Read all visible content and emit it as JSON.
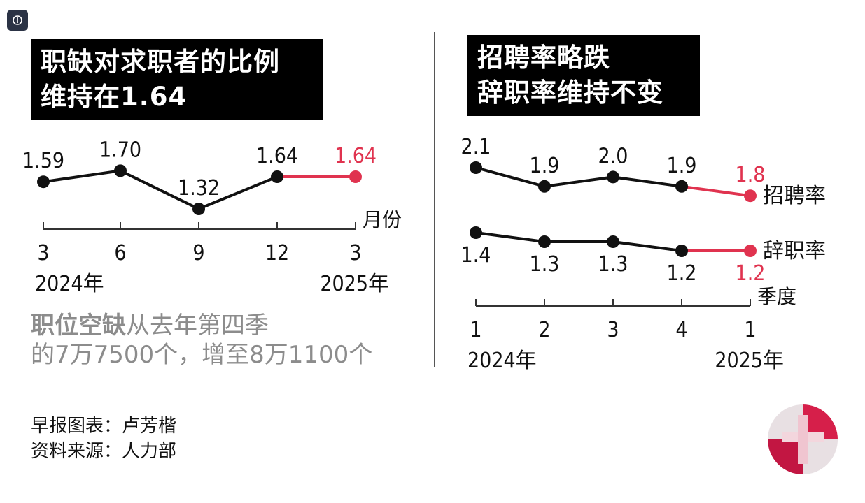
{
  "left_panel": {
    "title_lines": [
      "职缺对求职者的比例",
      "维持在1.64"
    ],
    "note": {
      "bold": "职位空缺",
      "rest1": "从去年第四季",
      "line2": "的7万7500个，增至8万1100个"
    }
  },
  "right_panel": {
    "title_lines": [
      "招聘率略跌",
      "辞职率维持不变"
    ]
  },
  "credits": [
    "早报图表：卢芳楷",
    "资料来源：人力部"
  ],
  "colors": {
    "highlight": "#e0334f",
    "line": "#111111",
    "note_text": "#8c8c8c"
  },
  "icons": {
    "corner_badge": "app-badge-icon",
    "brand_logo": "brand-logo-icon"
  },
  "chart_data": [
    {
      "type": "line",
      "categories": [
        "3",
        "6",
        "9",
        "12",
        "3"
      ],
      "year_labels": [
        "2024年",
        "2025年"
      ],
      "x_unit": "月份",
      "values": [
        1.59,
        1.7,
        1.32,
        1.64,
        1.64
      ],
      "value_labels": [
        "1.59",
        "1.70",
        "1.32",
        "1.64",
        "1.64"
      ],
      "highlight_last": true,
      "ylim": [
        1.2,
        1.8
      ]
    },
    {
      "type": "line",
      "categories": [
        "1",
        "2",
        "3",
        "4",
        "1"
      ],
      "year_labels": [
        "2024年",
        "2025年"
      ],
      "x_unit": "季度",
      "series": [
        {
          "name": "招聘率",
          "values": [
            2.1,
            1.9,
            2.0,
            1.9,
            1.8
          ],
          "value_labels": [
            "2.1",
            "1.9",
            "2.0",
            "1.9",
            "1.8"
          ]
        },
        {
          "name": "辞职率",
          "values": [
            1.4,
            1.3,
            1.3,
            1.2,
            1.2
          ],
          "value_labels": [
            "1.4",
            "1.3",
            "1.3",
            "1.2",
            "1.2"
          ]
        }
      ],
      "highlight_last": true
    }
  ]
}
